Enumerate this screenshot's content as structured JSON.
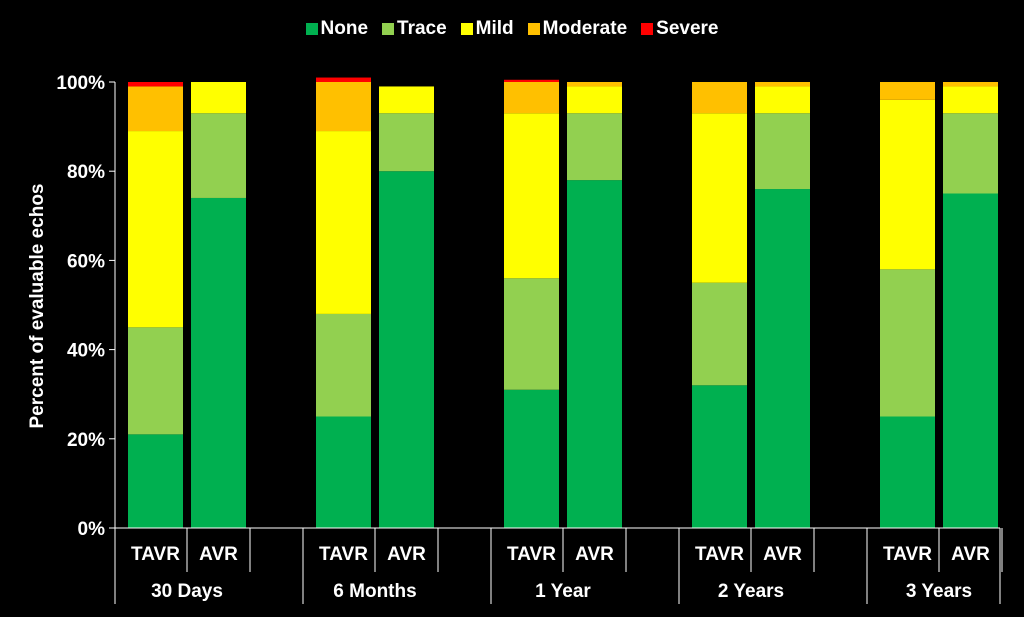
{
  "chart_data": {
    "type": "bar",
    "stacked": true,
    "title": "",
    "ylabel": "Percent of evaluable echos",
    "xlabel": "",
    "ylim": [
      0,
      100
    ],
    "y_ticks": [
      "0%",
      "20%",
      "40%",
      "60%",
      "80%",
      "100%"
    ],
    "legend_position": "top",
    "groups": [
      "30 Days",
      "6 Months",
      "1 Year",
      "2 Years",
      "3 Years"
    ],
    "categories": [
      "TAVR",
      "AVR",
      "TAVR",
      "AVR",
      "TAVR",
      "AVR",
      "TAVR",
      "AVR",
      "TAVR",
      "AVR"
    ],
    "series": [
      {
        "name": "None",
        "color": "#00b050",
        "values": [
          21,
          74,
          25,
          80,
          31,
          78,
          32,
          76,
          25,
          75
        ]
      },
      {
        "name": "Trace",
        "color": "#92d050",
        "values": [
          24,
          19,
          23,
          13,
          25,
          15,
          23,
          17,
          33,
          18
        ]
      },
      {
        "name": "Mild",
        "color": "#ffff00",
        "values": [
          44,
          7,
          41,
          6,
          37,
          6,
          38,
          6,
          38,
          6
        ]
      },
      {
        "name": "Moderate",
        "color": "#ffc000",
        "values": [
          10,
          0,
          11,
          0,
          7,
          1,
          7,
          1,
          4,
          1
        ]
      },
      {
        "name": "Severe",
        "color": "#ff0000",
        "values": [
          1,
          0,
          1,
          0,
          0.5,
          0,
          0,
          0,
          0,
          0
        ]
      }
    ]
  }
}
